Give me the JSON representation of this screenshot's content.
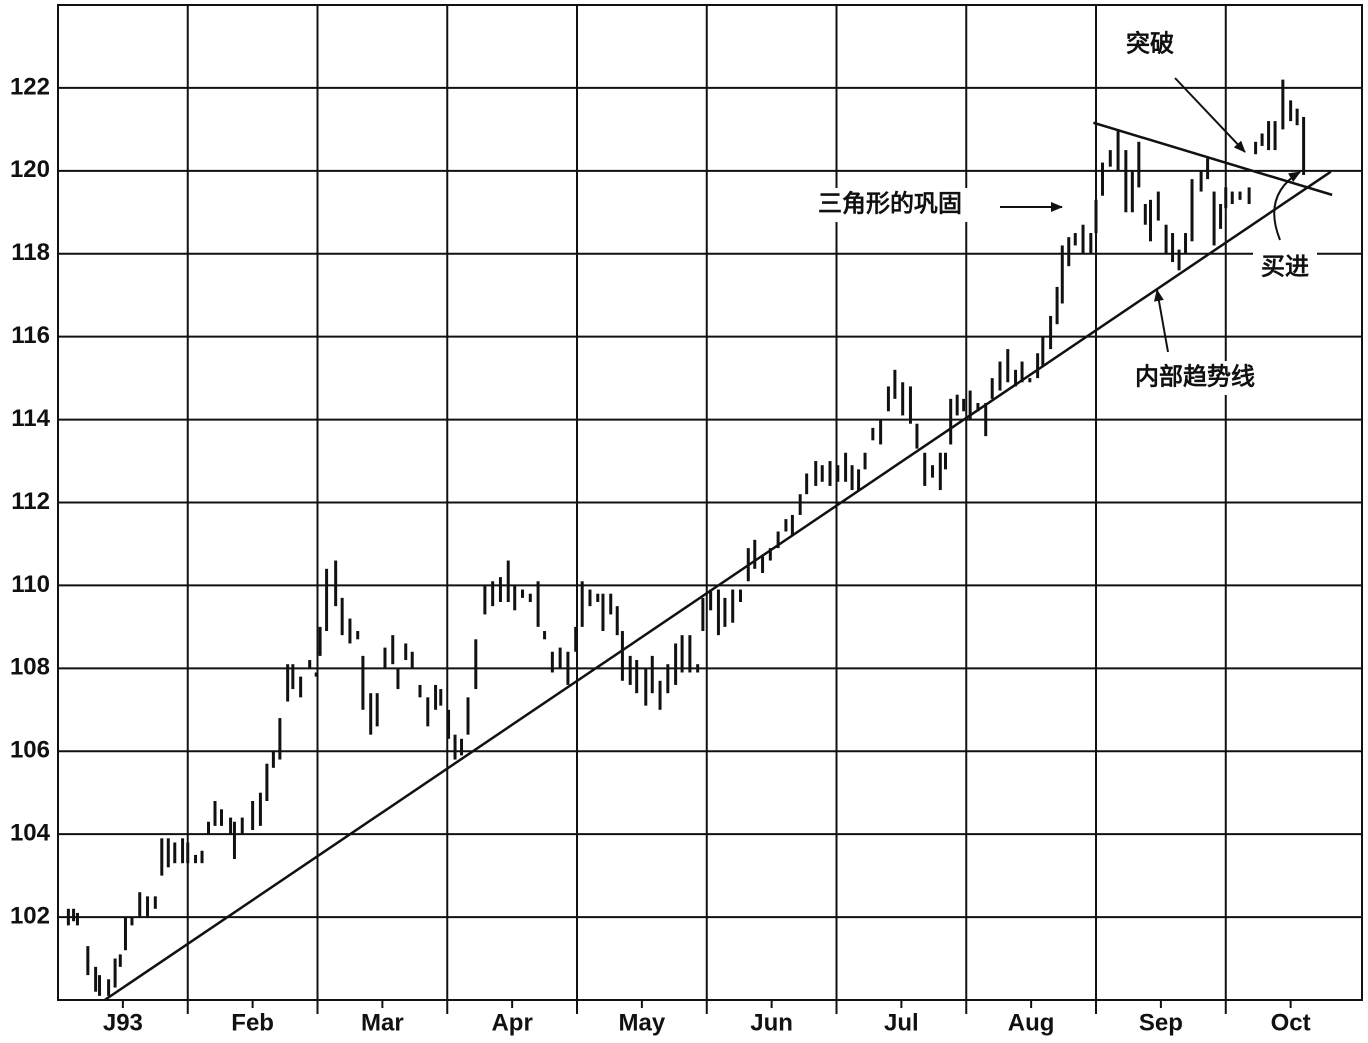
{
  "chart_data": {
    "type": "hlc",
    "xlim": [
      0,
      10.05
    ],
    "xticks": [
      {
        "value": 0.5,
        "label": "J93"
      },
      {
        "value": 1.5,
        "label": "Feb"
      },
      {
        "value": 2.5,
        "label": "Mar"
      },
      {
        "value": 3.5,
        "label": "Apr"
      },
      {
        "value": 4.5,
        "label": "May"
      },
      {
        "value": 5.5,
        "label": "Jun"
      },
      {
        "value": 6.5,
        "label": "Jul"
      },
      {
        "value": 7.5,
        "label": "Aug"
      },
      {
        "value": 8.5,
        "label": "Sep"
      },
      {
        "value": 9.5,
        "label": "Oct"
      }
    ],
    "ylim": [
      100,
      124
    ],
    "yticks": [
      102,
      104,
      106,
      108,
      110,
      112,
      114,
      116,
      118,
      120,
      122
    ],
    "grid": true,
    "color": "#111111",
    "x": [
      0.08,
      0.12,
      0.15,
      0.23,
      0.29,
      0.32,
      0.39,
      0.44,
      0.48,
      0.52,
      0.57,
      0.63,
      0.69,
      0.75,
      0.8,
      0.85,
      0.9,
      0.96,
      1.0,
      1.06,
      1.11,
      1.16,
      1.21,
      1.26,
      1.33,
      1.36,
      1.42,
      1.5,
      1.56,
      1.61,
      1.66,
      1.71,
      1.77,
      1.81,
      1.87,
      1.94,
      1.99,
      2.02,
      2.07,
      2.14,
      2.19,
      2.25,
      2.31,
      2.35,
      2.41,
      2.46,
      2.52,
      2.58,
      2.62,
      2.68,
      2.73,
      2.79,
      2.85,
      2.91,
      2.95,
      3.01,
      3.06,
      3.11,
      3.16,
      3.22,
      3.29,
      3.35,
      3.41,
      3.47,
      3.52,
      3.58,
      3.64,
      3.7,
      3.75,
      3.81,
      3.87,
      3.93,
      3.99,
      4.04,
      4.1,
      4.16,
      4.2,
      4.26,
      4.31,
      4.35,
      4.41,
      4.46,
      4.53,
      4.58,
      4.64,
      4.7,
      4.76,
      4.81,
      4.87,
      4.93,
      4.97,
      5.03,
      5.09,
      5.14,
      5.2,
      5.26,
      5.32,
      5.37,
      5.43,
      5.49,
      5.55,
      5.61,
      5.66,
      5.72,
      5.77,
      5.84,
      5.89,
      5.95,
      6.01,
      6.07,
      6.12,
      6.17,
      6.22,
      6.28,
      6.34,
      6.4,
      6.45,
      6.51,
      6.57,
      6.62,
      6.68,
      6.74,
      6.8,
      6.84,
      6.88,
      6.93,
      6.98,
      7.03,
      7.09,
      7.15,
      7.2,
      7.26,
      7.32,
      7.38,
      7.43,
      7.49,
      7.55,
      7.59,
      7.65,
      7.7,
      7.74,
      7.79,
      7.84,
      7.9,
      7.96,
      8.0,
      8.05,
      8.11,
      8.17,
      8.23,
      8.28,
      8.33,
      8.38,
      8.42,
      8.48,
      8.54,
      8.59,
      8.64,
      8.69,
      8.74,
      8.81,
      8.86,
      8.91,
      8.96,
      9.0,
      9.05,
      9.11,
      9.18,
      9.23,
      9.28,
      9.33,
      9.38,
      9.44,
      9.5,
      9.55,
      9.6
    ],
    "high": [
      102.2,
      102.2,
      102.1,
      101.3,
      100.8,
      100.6,
      100.5,
      101.0,
      101.1,
      102.0,
      102.0,
      102.6,
      102.5,
      102.5,
      103.9,
      103.9,
      103.8,
      103.9,
      103.8,
      103.5,
      103.6,
      104.3,
      104.8,
      104.6,
      104.4,
      104.3,
      104.4,
      104.8,
      105.0,
      105.7,
      106.0,
      106.8,
      108.1,
      108.1,
      107.8,
      108.2,
      107.9,
      109.0,
      110.4,
      110.6,
      109.7,
      109.2,
      108.9,
      108.3,
      107.4,
      107.4,
      108.5,
      108.8,
      108.0,
      108.6,
      108.4,
      107.6,
      107.3,
      107.6,
      107.5,
      107.0,
      106.4,
      106.3,
      107.3,
      108.7,
      110.0,
      110.1,
      110.2,
      110.6,
      110.0,
      109.9,
      109.8,
      110.1,
      108.9,
      108.4,
      108.5,
      108.4,
      109.0,
      110.1,
      109.9,
      109.8,
      109.8,
      109.8,
      109.5,
      108.9,
      108.3,
      108.2,
      108.0,
      108.3,
      107.7,
      108.1,
      108.6,
      108.8,
      108.8,
      108.1,
      109.7,
      109.9,
      109.9,
      109.7,
      109.9,
      109.9,
      110.9,
      111.1,
      110.7,
      110.9,
      111.3,
      111.6,
      111.7,
      112.2,
      112.7,
      113.0,
      112.9,
      113.0,
      112.9,
      113.2,
      112.9,
      112.8,
      113.2,
      113.8,
      114.0,
      114.8,
      115.2,
      114.9,
      114.8,
      113.9,
      113.2,
      112.9,
      113.2,
      113.2,
      114.5,
      114.6,
      114.5,
      114.7,
      114.4,
      114.4,
      115.0,
      115.4,
      115.7,
      115.2,
      115.4,
      115.0,
      115.6,
      116.0,
      116.5,
      117.2,
      118.2,
      118.4,
      118.5,
      118.7,
      118.5,
      119.3,
      120.2,
      120.5,
      121.0,
      120.5,
      120.0,
      120.7,
      119.2,
      119.3,
      119.5,
      118.7,
      118.5,
      118.1,
      118.5,
      119.8,
      120.0,
      120.3,
      119.5,
      119.2,
      119.6,
      119.5,
      119.5,
      119.6,
      120.7,
      120.9,
      121.2,
      121.2,
      122.2,
      121.7,
      121.5,
      121.3
    ],
    "low": [
      101.8,
      101.9,
      101.8,
      100.6,
      100.2,
      100.1,
      100.1,
      100.3,
      100.8,
      101.2,
      101.8,
      102.0,
      102.0,
      102.2,
      103.0,
      103.2,
      103.3,
      103.3,
      103.3,
      103.3,
      103.3,
      104.0,
      104.2,
      104.2,
      104.0,
      103.4,
      104.0,
      104.1,
      104.2,
      104.8,
      105.6,
      105.8,
      107.2,
      107.5,
      107.3,
      108.0,
      107.8,
      108.3,
      108.9,
      109.5,
      108.8,
      108.6,
      108.7,
      107.0,
      106.4,
      106.6,
      108.0,
      108.1,
      107.5,
      108.2,
      108.0,
      107.3,
      106.6,
      107.0,
      107.1,
      106.3,
      105.8,
      105.9,
      106.4,
      107.5,
      109.3,
      109.5,
      109.6,
      109.6,
      109.4,
      109.7,
      109.6,
      109.0,
      108.7,
      107.9,
      108.0,
      107.6,
      108.4,
      109.0,
      109.5,
      109.6,
      108.9,
      109.3,
      108.8,
      107.7,
      107.6,
      107.4,
      107.1,
      107.4,
      107.0,
      107.4,
      107.6,
      107.9,
      107.9,
      107.9,
      108.9,
      109.4,
      108.8,
      109.0,
      109.1,
      109.6,
      110.1,
      110.4,
      110.3,
      110.6,
      110.9,
      111.3,
      111.2,
      111.7,
      112.2,
      112.4,
      112.5,
      112.4,
      112.5,
      112.5,
      112.3,
      112.3,
      112.8,
      113.5,
      113.4,
      114.2,
      114.5,
      114.1,
      113.9,
      113.3,
      112.4,
      112.6,
      112.3,
      112.8,
      113.4,
      114.1,
      114.2,
      114.0,
      114.2,
      113.6,
      114.5,
      114.7,
      114.9,
      114.8,
      114.9,
      114.9,
      115.0,
      115.3,
      115.7,
      116.3,
      116.8,
      117.7,
      118.2,
      118.0,
      118.0,
      118.5,
      119.4,
      120.1,
      120.0,
      119.0,
      119.0,
      119.6,
      118.7,
      118.3,
      118.8,
      118.0,
      117.8,
      117.6,
      118.0,
      118.3,
      119.5,
      119.8,
      118.2,
      118.6,
      119.1,
      119.2,
      119.3,
      119.2,
      120.4,
      120.6,
      120.5,
      120.5,
      121.0,
      121.2,
      121.1,
      119.9
    ],
    "lines": [
      {
        "x": [
          0.36,
          9.81
        ],
        "y": [
          100.0,
          119.98
        ]
      },
      {
        "x": [
          7.98,
          9.82
        ],
        "y": [
          121.16,
          119.42
        ]
      }
    ],
    "annotations": [
      "突破",
      "三角形的巩固",
      "买进",
      "内部趋势线"
    ]
  }
}
